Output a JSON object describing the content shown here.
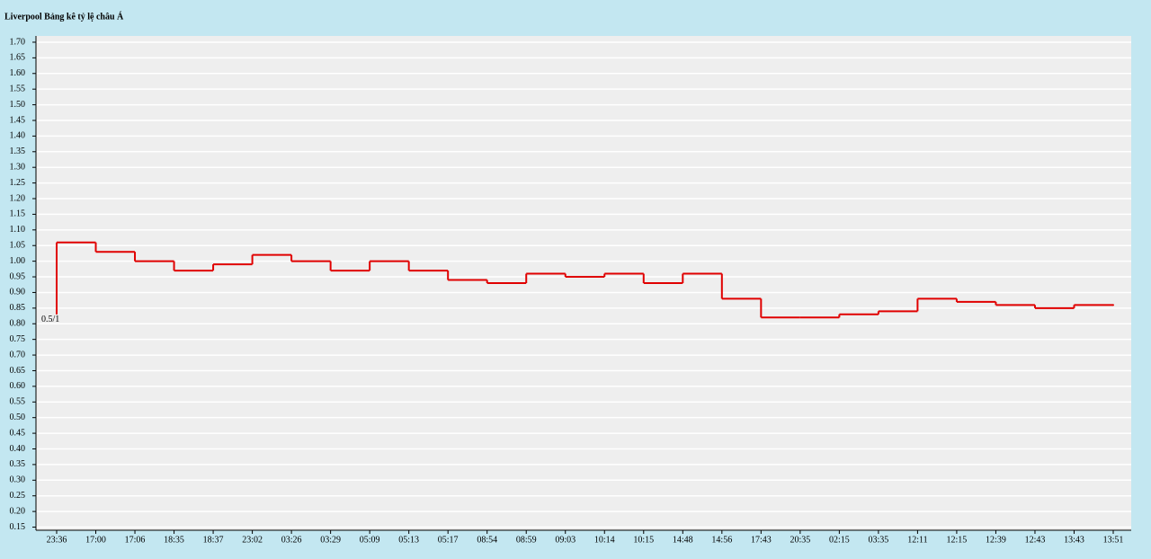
{
  "chart_data": {
    "type": "step",
    "title": "Liverpool Bảng kê tỷ lệ châu Á",
    "categories": [
      "23:36",
      "17:00",
      "17:06",
      "18:35",
      "18:37",
      "23:02",
      "03:26",
      "03:29",
      "05:09",
      "05:13",
      "05:17",
      "08:54",
      "08:59",
      "09:03",
      "10:14",
      "10:15",
      "14:48",
      "14:56",
      "17:43",
      "20:35",
      "02:15",
      "03:35",
      "12:11",
      "12:15",
      "12:39",
      "12:43",
      "13:43",
      "13:51"
    ],
    "series": [
      {
        "color": "#e00000",
        "values": [
          1.06,
          1.03,
          1.0,
          0.97,
          0.99,
          1.02,
          1.0,
          0.97,
          1.0,
          0.97,
          0.94,
          0.93,
          0.96,
          0.95,
          0.96,
          0.93,
          0.96,
          0.88,
          0.82,
          0.82,
          0.83,
          0.84,
          0.88,
          0.87,
          0.86,
          0.85,
          0.86,
          0.86
        ]
      }
    ],
    "annotation": {
      "text": "0.5/1",
      "value": 0.83
    },
    "ylim": [
      0.14,
      1.72
    ],
    "yticks": [
      0.15,
      {
        "value": 0.2,
        "label": "0.20"
      },
      0.25,
      {
        "value": 0.3,
        "label": "0.30"
      },
      0.35,
      {
        "value": 0.4,
        "label": "0.40"
      },
      0.45,
      {
        "value": 0.5,
        "label": "0.50"
      },
      0.55,
      {
        "value": 0.6,
        "label": "0.60"
      },
      0.65,
      {
        "value": 0.7,
        "label": "0.70"
      },
      0.75,
      {
        "value": 0.8,
        "label": "0.80"
      },
      0.85,
      {
        "value": 0.9,
        "label": "0.90"
      },
      0.95,
      {
        "value": 1,
        "label": "1.00"
      },
      1.05,
      {
        "value": 1.1,
        "label": "1.10"
      },
      1.15,
      {
        "value": 1.2,
        "label": "1.20"
      },
      1.25,
      {
        "value": 1.3,
        "label": "1.30"
      },
      1.35,
      {
        "value": 1.4,
        "label": "1.40"
      },
      1.45,
      {
        "value": 1.5,
        "label": "1.50"
      },
      1.55,
      {
        "value": 1.6,
        "label": "1.60"
      },
      1.65,
      {
        "value": 1.7,
        "label": "1.70"
      }
    ],
    "grid": true
  }
}
